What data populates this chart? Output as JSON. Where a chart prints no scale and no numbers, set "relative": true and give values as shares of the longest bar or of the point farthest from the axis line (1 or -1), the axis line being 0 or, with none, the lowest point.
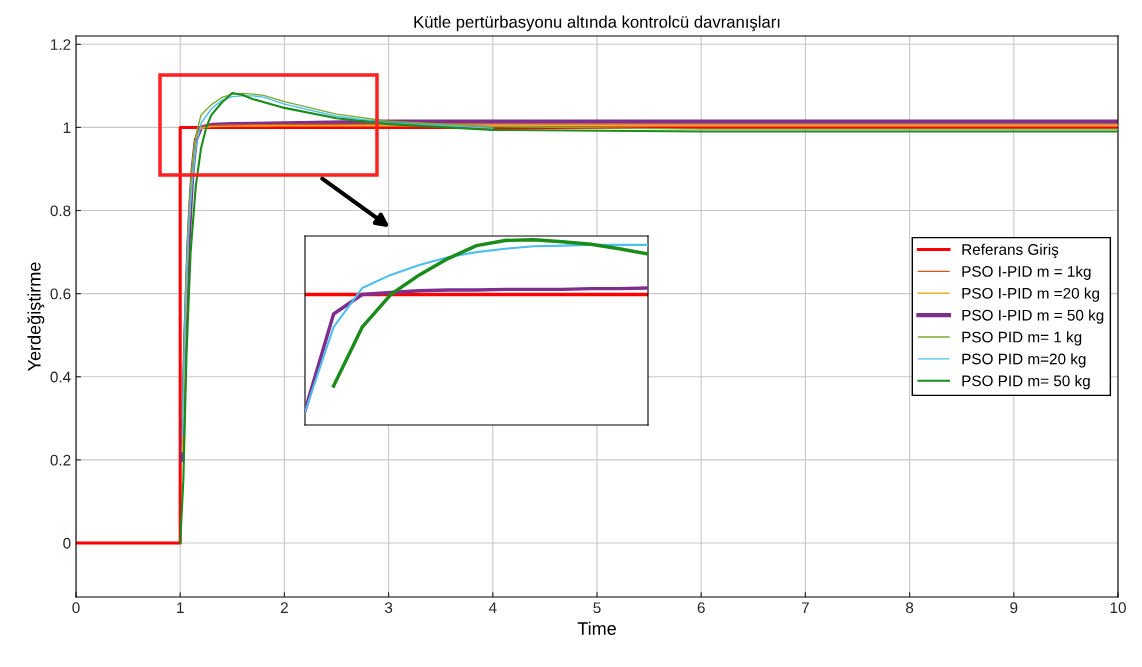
{
  "chart_data": [
    {
      "type": "line",
      "title": "Kütle pertürbasyonu altında kontrolcü davranışları",
      "xlabel": "Time",
      "ylabel": "Yerdeğiştirme",
      "xlim": [
        0,
        10
      ],
      "ylim": [
        -0.13,
        1.22
      ],
      "xticks": [
        0,
        1,
        2,
        3,
        4,
        5,
        6,
        7,
        8,
        9,
        10
      ],
      "yticks": [
        0,
        0.2,
        0.4,
        0.6,
        0.8,
        1,
        1.2
      ],
      "grid": true,
      "legend": "right",
      "series": [
        {
          "name": "Referans Giriş",
          "color": "#ff0000",
          "x": [
            0,
            1,
            1,
            10
          ],
          "values": [
            0,
            0,
            1,
            1
          ]
        },
        {
          "name": "PSO I-PID m = 1kg",
          "color": "#d95319",
          "x": [
            1.02,
            1.05,
            1.08,
            1.1,
            1.12,
            1.15,
            1.2,
            1.3,
            1.5,
            2,
            3,
            5,
            10
          ],
          "values": [
            0.25,
            0.55,
            0.76,
            0.85,
            0.92,
            0.98,
            1.002,
            1.005,
            1.006,
            1.007,
            1.008,
            1.008,
            1.008
          ]
        },
        {
          "name": "PSO I-PID m =20 kg",
          "color": "#edb120",
          "x": [
            1.02,
            1.05,
            1.08,
            1.1,
            1.12,
            1.15,
            1.2,
            1.3,
            1.5,
            2,
            3,
            5,
            10
          ],
          "values": [
            0.22,
            0.52,
            0.74,
            0.83,
            0.91,
            0.975,
            0.998,
            1.002,
            1.003,
            1.004,
            1.004,
            1.004,
            1.004
          ]
        },
        {
          "name": "PSO I-PID m = 50 kg",
          "color": "#7e2f8e",
          "x": [
            1.02,
            1.05,
            1.08,
            1.1,
            1.12,
            1.15,
            1.2,
            1.3,
            1.5,
            2,
            3,
            5,
            10
          ],
          "values": [
            0.2,
            0.5,
            0.72,
            0.82,
            0.9,
            0.97,
            1.0,
            1.006,
            1.008,
            1.01,
            1.014,
            1.014,
            1.014
          ]
        },
        {
          "name": "PSO PID m= 1 kg",
          "color": "#77ac30",
          "x": [
            1.02,
            1.05,
            1.08,
            1.1,
            1.12,
            1.15,
            1.2,
            1.3,
            1.4,
            1.5,
            1.6,
            1.7,
            1.8,
            2,
            2.5,
            3,
            4,
            6,
            10
          ],
          "values": [
            0.3,
            0.6,
            0.78,
            0.86,
            0.92,
            0.98,
            1.03,
            1.055,
            1.072,
            1.08,
            1.082,
            1.08,
            1.077,
            1.062,
            1.032,
            1.015,
            1.002,
            0.996,
            0.996
          ]
        },
        {
          "name": "PSO PID m=20 kg",
          "color": "#4dbeee",
          "x": [
            1.02,
            1.05,
            1.08,
            1.1,
            1.12,
            1.15,
            1.2,
            1.3,
            1.4,
            1.5,
            1.6,
            1.7,
            1.8,
            2,
            2.5,
            3,
            4
          ],
          "values": [
            0.26,
            0.56,
            0.75,
            0.82,
            0.88,
            0.95,
            1.01,
            1.045,
            1.065,
            1.074,
            1.076,
            1.076,
            1.073,
            1.056,
            1.027,
            1.011,
            0.998
          ]
        },
        {
          "name": "PSO PID m= 50 kg",
          "color": "#1a8c1a",
          "x": [
            1,
            1.03,
            1.06,
            1.1,
            1.15,
            1.2,
            1.25,
            1.3,
            1.4,
            1.5,
            1.6,
            1.7,
            2,
            2.5,
            3,
            4,
            6,
            10
          ],
          "values": [
            0,
            0.15,
            0.45,
            0.7,
            0.86,
            0.95,
            1.0,
            1.03,
            1.06,
            1.083,
            1.078,
            1.068,
            1.047,
            1.022,
            1.008,
            0.994,
            0.99,
            0.99
          ]
        }
      ]
    },
    {
      "type": "line",
      "relative": true,
      "categories": [
        null,
        null,
        null,
        null,
        null,
        null,
        null,
        null,
        null,
        null,
        null,
        null,
        null
      ],
      "series": [
        {
          "color": "#ff0000",
          "values": [
            0.704,
            0.704,
            0.704,
            0.704,
            0.704,
            0.704,
            0.704,
            0.704,
            0.704,
            0.704,
            0.704,
            0.704,
            0.704
          ]
        },
        {
          "color": "#7e2f8e",
          "values": [
            0.077,
            0.599,
            0.704,
            0.715,
            0.725,
            0.729,
            0.729,
            0.732,
            0.732,
            0.732,
            0.736,
            0.736,
            0.739
          ]
        },
        {
          "color": "#4dbeee",
          "values": [
            0.07,
            0.528,
            0.739,
            0.81,
            0.863,
            0.905,
            0.933,
            0.951,
            0.965,
            0.968,
            0.972,
            0.972,
            0.972
          ]
        },
        {
          "color": "#1a8c1a",
          "values": [
            null,
            0.211,
            0.528,
            0.704,
            0.81,
            0.898,
            0.968,
            0.996,
            1,
            0.989,
            0.975,
            0.951,
            0.923
          ]
        }
      ]
    }
  ]
}
